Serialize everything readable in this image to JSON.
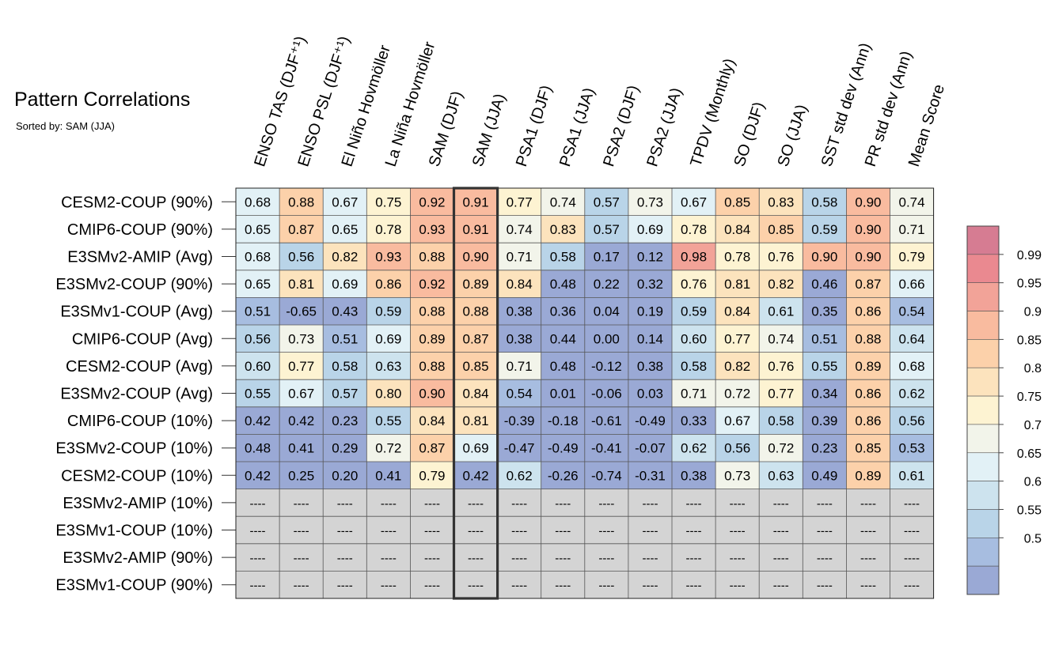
{
  "title": "Pattern Correlations",
  "subtitle": "Sorted by: SAM (JJA)",
  "missing_label": "----",
  "colors": {
    "missing": "#d4d4d4",
    "grid": "#555555",
    "highlight": "#333333",
    "bins": [
      "#9aa9d5",
      "#a7bde0",
      "#b9d4e8",
      "#cde3ee",
      "#e2f1f6",
      "#f2f4ea",
      "#fdf3d2",
      "#fce3bd",
      "#fcd1aa",
      "#f9bb9f",
      "#f2a398",
      "#ea8990",
      "#d67c92"
    ]
  },
  "chart_data": {
    "type": "heatmap",
    "columns": [
      "ENSO TAS (DJF⁺¹)",
      "ENSO PSL (DJF⁺¹)",
      "El Niño Hovmöller",
      "La Niña Hovmöller",
      "SAM (DJF)",
      "SAM (JJA)",
      "PSA1 (DJF)",
      "PSA1 (JJA)",
      "PSA2 (DJF)",
      "PSA2 (JJA)",
      "TPDV (Monthly)",
      "SO (DJF)",
      "SO (JJA)",
      "SST std dev (Ann)",
      "PR std dev (Ann)",
      "Mean Score"
    ],
    "rows": [
      "CESM2-COUP (90%)",
      "CMIP6-COUP (90%)",
      "E3SMv2-AMIP (Avg)",
      "E3SMv2-COUP (90%)",
      "E3SMv1-COUP (Avg)",
      "CMIP6-COUP (Avg)",
      "CESM2-COUP (Avg)",
      "E3SMv2-COUP (Avg)",
      "CMIP6-COUP (10%)",
      "E3SMv2-COUP (10%)",
      "CESM2-COUP (10%)",
      "E3SMv2-AMIP (10%)",
      "E3SMv1-COUP (10%)",
      "E3SMv2-AMIP (90%)",
      "E3SMv1-COUP (90%)"
    ],
    "values": [
      [
        0.68,
        0.88,
        0.67,
        0.75,
        0.92,
        0.91,
        0.77,
        0.74,
        0.57,
        0.73,
        0.67,
        0.85,
        0.83,
        0.58,
        0.9,
        0.74
      ],
      [
        0.65,
        0.87,
        0.65,
        0.78,
        0.93,
        0.91,
        0.74,
        0.83,
        0.57,
        0.69,
        0.78,
        0.84,
        0.85,
        0.59,
        0.9,
        0.71
      ],
      [
        0.68,
        0.56,
        0.82,
        0.93,
        0.88,
        0.9,
        0.71,
        0.58,
        0.17,
        0.12,
        0.98,
        0.78,
        0.76,
        0.9,
        0.9,
        0.79
      ],
      [
        0.65,
        0.81,
        0.69,
        0.86,
        0.92,
        0.89,
        0.84,
        0.48,
        0.22,
        0.32,
        0.76,
        0.81,
        0.82,
        0.46,
        0.87,
        0.66
      ],
      [
        0.51,
        -0.65,
        0.43,
        0.59,
        0.88,
        0.88,
        0.38,
        0.36,
        0.04,
        0.19,
        0.59,
        0.84,
        0.61,
        0.35,
        0.86,
        0.54
      ],
      [
        0.56,
        0.73,
        0.51,
        0.69,
        0.89,
        0.87,
        0.38,
        0.44,
        -0.0,
        0.14,
        0.6,
        0.77,
        0.74,
        0.51,
        0.88,
        0.64
      ],
      [
        0.6,
        0.77,
        0.58,
        0.63,
        0.88,
        0.85,
        0.71,
        0.48,
        -0.12,
        0.38,
        0.58,
        0.82,
        0.76,
        0.55,
        0.89,
        0.68
      ],
      [
        0.55,
        0.67,
        0.57,
        0.8,
        0.9,
        0.84,
        0.54,
        0.01,
        -0.06,
        0.03,
        0.71,
        0.72,
        0.77,
        0.34,
        0.86,
        0.62
      ],
      [
        0.42,
        0.42,
        0.23,
        0.55,
        0.84,
        0.81,
        -0.39,
        -0.18,
        -0.61,
        -0.49,
        0.33,
        0.67,
        0.58,
        0.39,
        0.86,
        0.56
      ],
      [
        0.48,
        0.41,
        0.29,
        0.72,
        0.87,
        0.69,
        -0.47,
        -0.49,
        -0.41,
        -0.07,
        0.62,
        0.56,
        0.72,
        0.23,
        0.85,
        0.53
      ],
      [
        0.42,
        0.25,
        0.2,
        0.41,
        0.79,
        0.42,
        0.62,
        -0.26,
        -0.74,
        -0.31,
        0.38,
        0.73,
        0.63,
        0.49,
        0.89,
        0.61
      ],
      [
        null,
        null,
        null,
        null,
        null,
        null,
        null,
        null,
        null,
        null,
        null,
        null,
        null,
        null,
        null,
        null
      ],
      [
        null,
        null,
        null,
        null,
        null,
        null,
        null,
        null,
        null,
        null,
        null,
        null,
        null,
        null,
        null,
        null
      ],
      [
        null,
        null,
        null,
        null,
        null,
        null,
        null,
        null,
        null,
        null,
        null,
        null,
        null,
        null,
        null,
        null
      ],
      [
        null,
        null,
        null,
        null,
        null,
        null,
        null,
        null,
        null,
        null,
        null,
        null,
        null,
        null,
        null,
        null
      ]
    ],
    "highlight_column": "SAM (JJA)",
    "colorbar_levels": [
      0.5,
      0.55,
      0.6,
      0.65,
      0.7,
      0.75,
      0.8,
      0.85,
      0.9,
      0.95,
      0.99
    ],
    "colorbar_labels": [
      "0.99",
      "0.95",
      "0.9",
      "0.85",
      "0.8",
      "0.75",
      "0.7",
      "0.65",
      "0.6",
      "0.55",
      "0.5"
    ],
    "legend_position": "right"
  }
}
